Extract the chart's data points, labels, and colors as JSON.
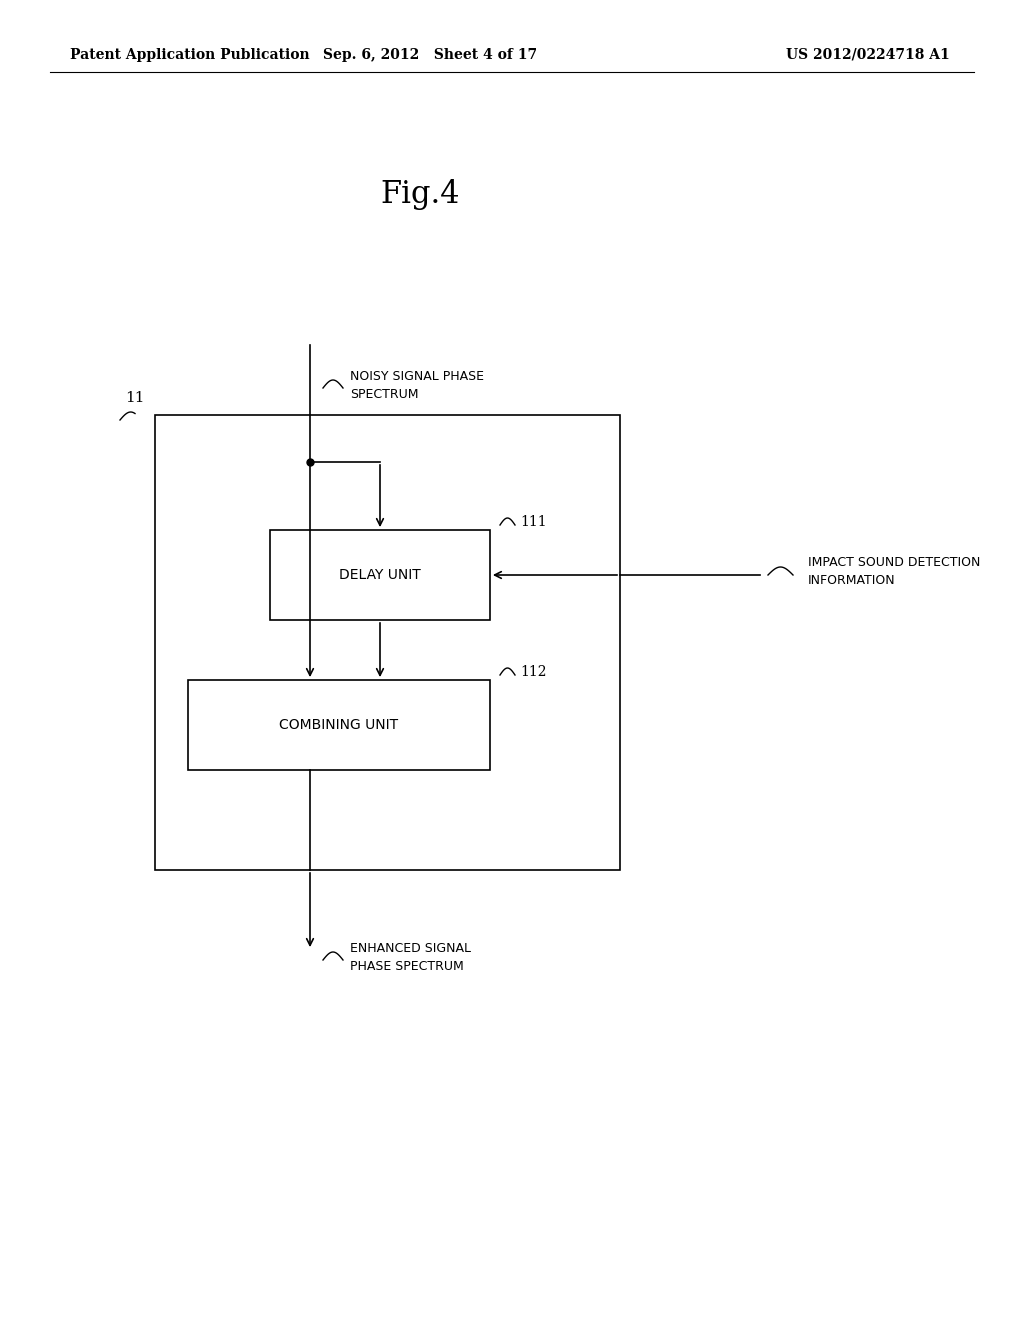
{
  "background_color": "#ffffff",
  "header_left": "Patent Application Publication",
  "header_center": "Sep. 6, 2012   Sheet 4 of 17",
  "header_right": "US 2012/0224718 A1",
  "figure_title": "Fig.4",
  "outer_box_label": "11",
  "delay_box_label": "DELAY UNIT",
  "delay_box_ref": "111",
  "combining_box_label": "COMBINING UNIT",
  "combining_box_ref": "112",
  "input_label": "NOISY SIGNAL PHASE\nSPECTRUM",
  "output_label": "ENHANCED SIGNAL\nPHASE SPECTRUM",
  "side_label": "IMPACT SOUND DETECTION\nINFORMATION"
}
